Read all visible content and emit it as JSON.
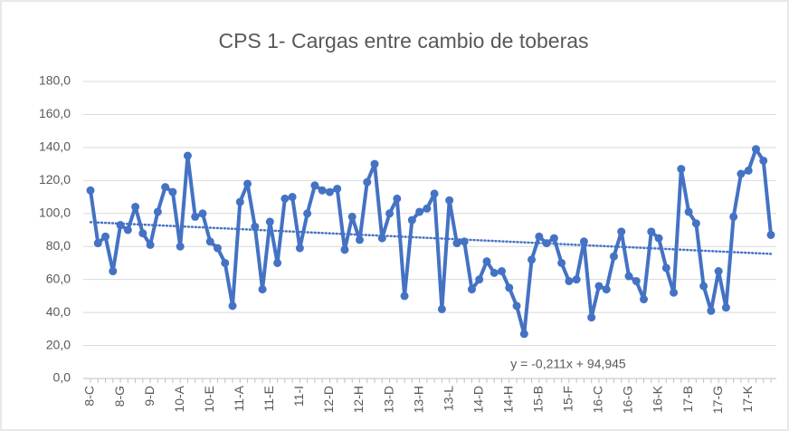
{
  "chart_data": {
    "type": "line",
    "title": "CPS 1- Cargas entre cambio de toberas",
    "categories": [
      "8-C",
      null,
      null,
      null,
      "8-G",
      null,
      null,
      null,
      "9-D",
      null,
      null,
      null,
      "10-A",
      null,
      null,
      null,
      "10-E",
      null,
      null,
      null,
      "11-A",
      null,
      null,
      null,
      "11-E",
      null,
      null,
      null,
      "11-I",
      null,
      null,
      null,
      "12-D",
      null,
      null,
      null,
      "12-H",
      null,
      null,
      null,
      "13-D",
      null,
      null,
      null,
      "13-H",
      null,
      null,
      null,
      "13-L",
      null,
      null,
      null,
      "14-D",
      null,
      null,
      null,
      "14-H",
      null,
      null,
      null,
      "15-B",
      null,
      null,
      null,
      "15-F",
      null,
      null,
      null,
      "16-C",
      null,
      null,
      null,
      "16-G",
      null,
      null,
      null,
      "16-K",
      null,
      null,
      null,
      "17-B",
      null,
      null,
      null,
      "17-G",
      null,
      null,
      null,
      "17-K",
      null,
      null,
      null
    ],
    "series": [
      {
        "color": "#4472c4",
        "values": [
          114,
          82,
          86,
          65,
          93,
          90,
          104,
          88,
          81,
          101,
          116,
          113,
          80,
          135,
          98,
          100,
          83,
          79,
          70,
          44,
          107,
          118,
          92,
          54,
          95,
          70,
          109,
          110,
          79,
          100,
          117,
          114,
          113,
          115,
          78,
          98,
          84,
          119,
          130,
          85,
          100,
          109,
          50,
          96,
          101,
          103,
          112,
          42,
          108,
          82,
          83,
          54,
          60,
          71,
          64,
          65,
          55,
          44,
          27,
          72,
          86,
          82,
          85,
          70,
          59,
          60,
          83,
          37,
          56,
          54,
          74,
          89,
          62,
          59,
          48,
          89,
          85,
          67,
          52,
          127,
          101,
          94,
          56,
          41,
          65,
          43,
          98,
          124,
          126,
          139,
          132,
          87
        ]
      }
    ],
    "trendline": {
      "slope": -0.211,
      "intercept": 94.945,
      "label": "y = -0,211x + 94,945",
      "color": "#4472c4"
    },
    "ylim": [
      0,
      180
    ],
    "yticks": [
      {
        "value": 0,
        "label": "0,0"
      },
      {
        "value": 20,
        "label": "20,0"
      },
      {
        "value": 40,
        "label": "40,0"
      },
      {
        "value": 60,
        "label": "60,0"
      },
      {
        "value": 80,
        "label": "80,0"
      },
      {
        "value": 100,
        "label": "100,0"
      },
      {
        "value": 120,
        "label": "120,0"
      },
      {
        "value": 140,
        "label": "140,0"
      },
      {
        "value": 160,
        "label": "160,0"
      },
      {
        "value": 180,
        "label": "180,0"
      }
    ],
    "grid": true
  }
}
